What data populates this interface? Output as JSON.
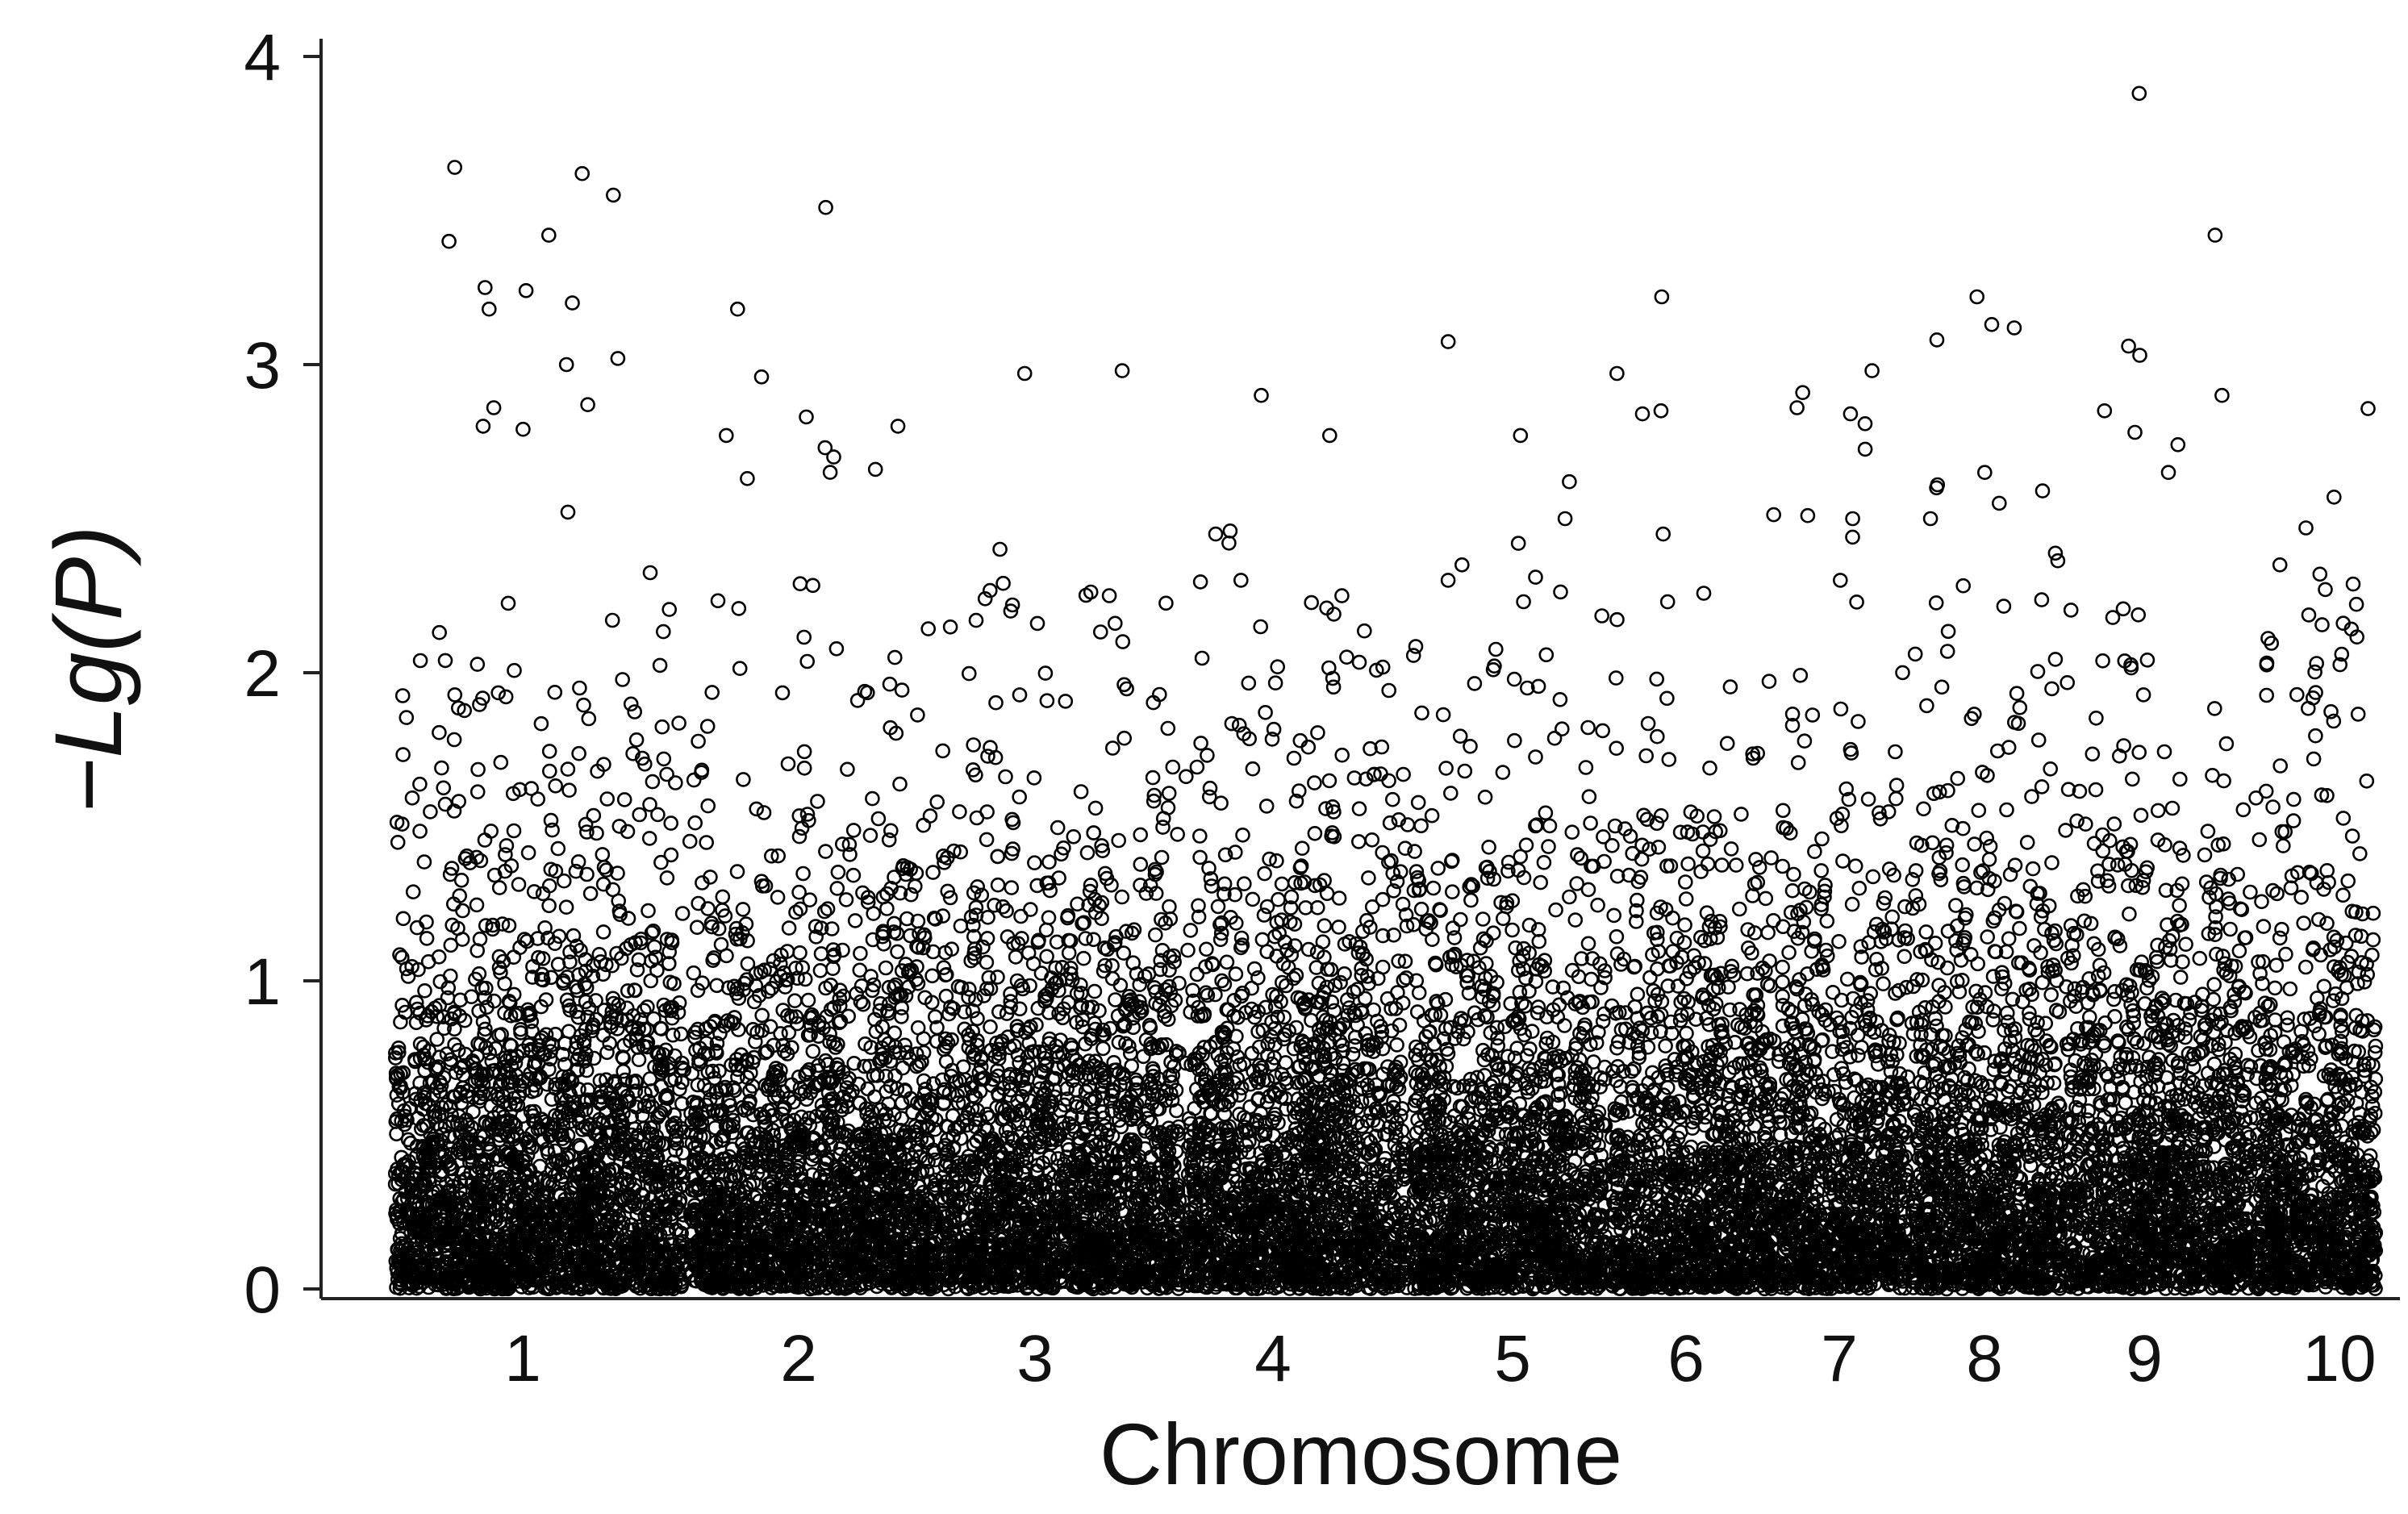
{
  "chart_data": {
    "type": "scatter",
    "title": "",
    "xlabel": "Chromosome",
    "ylabel": "−Lg(P)",
    "ylim": [
      0,
      4
    ],
    "yticks": [
      0,
      1,
      2,
      3,
      4
    ],
    "grid": false,
    "legend": "none",
    "marker": "open-circle",
    "marker_color": "#000000",
    "categories": [
      "1",
      "2",
      "3",
      "4",
      "5",
      "6",
      "7",
      "8",
      "9",
      "10"
    ],
    "series": [
      {
        "values_by_chromosome": [
          {
            "chromosome": "1",
            "top_points": [
              3.64,
              3.62,
              3.55,
              3.42,
              3.4,
              3.25,
              3.24,
              3.2,
              3.18,
              3.02,
              3.0,
              2.87,
              2.86,
              2.8,
              2.79
            ]
          },
          {
            "chromosome": "2",
            "top_points": [
              3.51,
              3.18,
              2.96,
              2.83,
              2.8,
              2.77,
              2.73,
              2.7,
              2.66,
              2.63
            ]
          },
          {
            "chromosome": "3",
            "top_points": [
              2.98,
              2.29,
              2.25,
              2.24,
              2.22,
              2.2,
              2.17,
              2.16
            ]
          },
          {
            "chromosome": "4",
            "top_points": [
              2.9,
              2.77,
              2.46,
              2.45,
              2.3,
              2.21,
              2.19
            ]
          },
          {
            "chromosome": "5",
            "top_points": [
              2.77,
              2.62,
              2.5,
              2.42,
              2.35,
              2.31,
              2.3
            ]
          },
          {
            "chromosome": "6",
            "top_points": [
              3.22,
              2.85,
              2.84,
              2.45,
              2.23
            ]
          },
          {
            "chromosome": "7",
            "top_points": [
              2.98,
              2.86,
              2.84,
              2.51,
              2.5,
              2.44,
              2.3
            ]
          },
          {
            "chromosome": "8",
            "top_points": [
              3.22,
              3.13,
              3.08,
              2.65,
              2.61,
              2.6,
              2.59,
              2.55,
              2.5
            ]
          },
          {
            "chromosome": "9",
            "top_points": [
              3.88,
              3.42,
              3.06,
              3.03,
              2.9,
              2.85,
              2.78,
              2.74,
              2.65
            ]
          },
          {
            "chromosome": "10",
            "top_points": [
              2.57,
              2.47,
              2.35,
              2.32,
              2.27,
              2.06,
              2.03
            ]
          }
        ]
      }
    ]
  }
}
